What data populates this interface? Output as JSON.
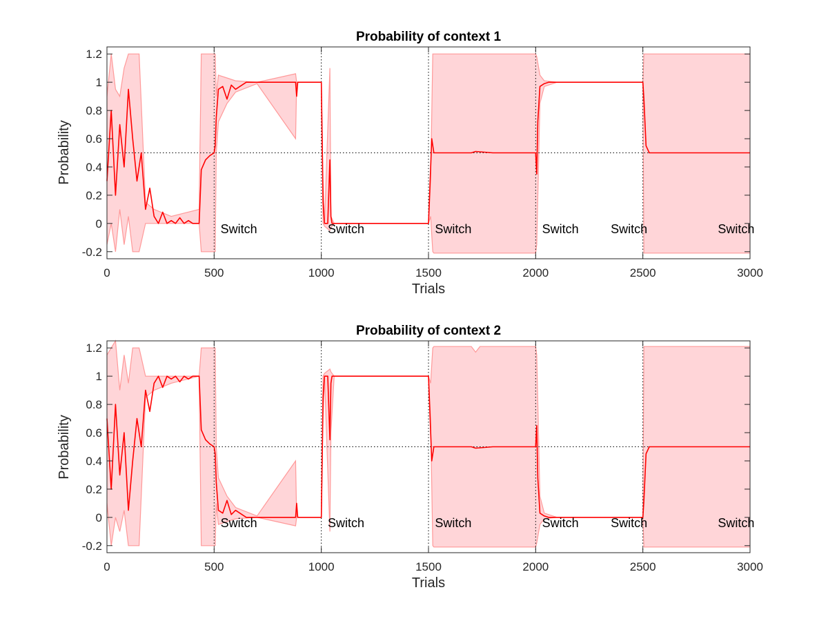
{
  "chart_data": [
    {
      "type": "line",
      "title": "Probability of context 1",
      "xlabel": "Trials",
      "ylabel": "Probability",
      "xlim": [
        0,
        3000
      ],
      "ylim": [
        -0.25,
        1.25
      ],
      "xticks": [
        0,
        500,
        1000,
        1500,
        2000,
        2500,
        3000
      ],
      "xtick_labels": [
        "0",
        "500",
        "1000",
        "1500",
        "2000",
        "2500",
        "3000"
      ],
      "yticks": [
        -0.2,
        0,
        0.2,
        0.4,
        0.6,
        0.8,
        1,
        1.2
      ],
      "ytick_labels": [
        "-0.2",
        "0",
        "0.2",
        "0.4",
        "0.6",
        "0.8",
        "1",
        "1.2"
      ],
      "grid": false,
      "colors": {
        "line": "#ff0000",
        "band_fill": "#ffd5d8",
        "band_edge": "#ff9999",
        "reference": "#000000"
      },
      "reference_line_y": 0.5,
      "switch_x": [
        500,
        1000,
        1500,
        2000,
        2500
      ],
      "annotations": [
        {
          "text": "Switch",
          "x": 530,
          "y": -0.07
        },
        {
          "text": "Switch",
          "x": 1030,
          "y": -0.07
        },
        {
          "text": "Switch",
          "x": 1530,
          "y": -0.07
        },
        {
          "text": "Switch",
          "x": 2030,
          "y": -0.07
        },
        {
          "text": "Switch",
          "x": 2350,
          "y": -0.07
        },
        {
          "text": "Switch",
          "x": 2850,
          "y": -0.07
        }
      ],
      "series": [
        {
          "role": "mean",
          "x": [
            0,
            20,
            40,
            60,
            80,
            100,
            120,
            140,
            160,
            180,
            200,
            220,
            240,
            260,
            280,
            300,
            320,
            340,
            360,
            380,
            400,
            430,
            440,
            460,
            480,
            500,
            505,
            510,
            520,
            540,
            560,
            580,
            600,
            650,
            700,
            800,
            880,
            885,
            890,
            900,
            1000,
            1008,
            1015,
            1030,
            1040,
            1045,
            1050,
            1060,
            1080,
            1200,
            1400,
            1500,
            1505,
            1515,
            1525,
            1550,
            1600,
            1700,
            1720,
            1800,
            2000,
            2005,
            2010,
            2020,
            2040,
            2060,
            2100,
            2300,
            2500,
            2505,
            2515,
            2530,
            2600,
            3000
          ],
          "y": [
            0.3,
            0.8,
            0.2,
            0.7,
            0.4,
            0.95,
            0.6,
            0.3,
            0.5,
            0.1,
            0.25,
            0.05,
            0.0,
            0.08,
            0.0,
            0.02,
            0.0,
            0.04,
            0.0,
            0.02,
            0.0,
            0.0,
            0.38,
            0.45,
            0.48,
            0.5,
            0.55,
            0.75,
            0.95,
            0.97,
            0.88,
            0.98,
            0.95,
            1.0,
            1.0,
            1.0,
            1.0,
            0.9,
            1.0,
            1.0,
            1.0,
            0.15,
            0.0,
            0.0,
            0.45,
            0.05,
            0.0,
            0.0,
            0.0,
            0.0,
            0.0,
            0.0,
            0.2,
            0.6,
            0.5,
            0.5,
            0.5,
            0.5,
            0.51,
            0.5,
            0.5,
            0.35,
            0.72,
            0.97,
            0.99,
            1.0,
            1.0,
            1.0,
            1.0,
            0.88,
            0.55,
            0.5,
            0.5,
            0.5
          ]
        },
        {
          "role": "upper-bound",
          "x": [
            0,
            20,
            40,
            60,
            80,
            100,
            120,
            150,
            180,
            220,
            300,
            430,
            440,
            500,
            505,
            510,
            520,
            560,
            600,
            700,
            880,
            885,
            890,
            1000,
            1008,
            1015,
            1040,
            1045,
            1060,
            1500,
            1510,
            1520,
            1525,
            2000,
            2005,
            2020,
            2040,
            2100,
            2500,
            2505,
            2510,
            2520,
            3000
          ],
          "y": [
            0.9,
            1.2,
            0.95,
            0.9,
            1.1,
            1.2,
            1.2,
            1.2,
            0.15,
            0.1,
            0.05,
            0.1,
            1.2,
            1.2,
            1.2,
            0.9,
            1.05,
            1.03,
            1.01,
            1.0,
            1.06,
            1.0,
            1.0,
            1.0,
            0.3,
            0.0,
            1.1,
            0.05,
            0.0,
            0.0,
            0.3,
            1.2,
            1.2,
            1.2,
            1.18,
            1.05,
            1.01,
            1.0,
            1.0,
            1.2,
            1.2,
            1.2,
            1.2
          ]
        },
        {
          "role": "lower-bound",
          "x": [
            0,
            20,
            40,
            60,
            80,
            100,
            120,
            150,
            180,
            220,
            300,
            430,
            440,
            500,
            505,
            510,
            520,
            560,
            600,
            700,
            880,
            885,
            890,
            1000,
            1008,
            1015,
            1040,
            1045,
            1060,
            1500,
            1510,
            1520,
            1525,
            2000,
            2005,
            2020,
            2040,
            2100,
            2500,
            2505,
            2510,
            2520,
            3000
          ],
          "y": [
            -0.15,
            0.0,
            -0.2,
            0.1,
            -0.15,
            0.05,
            -0.2,
            -0.2,
            0.0,
            0.0,
            0.0,
            0.0,
            -0.2,
            -0.2,
            -0.2,
            0.5,
            0.72,
            0.85,
            0.93,
            0.99,
            0.6,
            1.0,
            1.0,
            1.0,
            0.0,
            -0.02,
            -0.05,
            -0.03,
            0.0,
            0.0,
            0.05,
            -0.2,
            -0.21,
            -0.21,
            -0.15,
            0.85,
            0.97,
            1.0,
            1.0,
            -0.21,
            -0.21,
            -0.21,
            -0.21
          ]
        }
      ]
    },
    {
      "type": "line",
      "title": "Probability of context 2",
      "xlabel": "Trials",
      "ylabel": "Probability",
      "xlim": [
        0,
        3000
      ],
      "ylim": [
        -0.25,
        1.25
      ],
      "xticks": [
        0,
        500,
        1000,
        1500,
        2000,
        2500,
        3000
      ],
      "xtick_labels": [
        "0",
        "500",
        "1000",
        "1500",
        "2000",
        "2500",
        "3000"
      ],
      "yticks": [
        -0.2,
        0,
        0.2,
        0.4,
        0.6,
        0.8,
        1,
        1.2
      ],
      "ytick_labels": [
        "-0.2",
        "0",
        "0.2",
        "0.4",
        "0.6",
        "0.8",
        "1",
        "1.2"
      ],
      "grid": false,
      "colors": {
        "line": "#ff0000",
        "band_fill": "#ffd5d8",
        "band_edge": "#ff9999",
        "reference": "#000000"
      },
      "reference_line_y": 0.5,
      "switch_x": [
        500,
        1000,
        1500,
        2000,
        2500
      ],
      "annotations": [
        {
          "text": "Switch",
          "x": 530,
          "y": -0.07
        },
        {
          "text": "Switch",
          "x": 1030,
          "y": -0.07
        },
        {
          "text": "Switch",
          "x": 1530,
          "y": -0.07
        },
        {
          "text": "Switch",
          "x": 2030,
          "y": -0.07
        },
        {
          "text": "Switch",
          "x": 2350,
          "y": -0.07
        },
        {
          "text": "Switch",
          "x": 2850,
          "y": -0.07
        }
      ],
      "series": [
        {
          "role": "mean",
          "x": [
            0,
            20,
            40,
            60,
            80,
            100,
            120,
            140,
            160,
            180,
            200,
            220,
            240,
            260,
            280,
            300,
            320,
            340,
            360,
            380,
            400,
            430,
            440,
            460,
            480,
            500,
            505,
            510,
            520,
            540,
            560,
            580,
            600,
            650,
            700,
            800,
            880,
            885,
            890,
            900,
            1000,
            1008,
            1015,
            1030,
            1040,
            1045,
            1050,
            1060,
            1080,
            1200,
            1400,
            1500,
            1505,
            1515,
            1525,
            1550,
            1600,
            1700,
            1720,
            1800,
            2000,
            2005,
            2010,
            2020,
            2040,
            2060,
            2100,
            2300,
            2500,
            2505,
            2515,
            2530,
            2600,
            3000
          ],
          "y": [
            0.7,
            0.2,
            0.8,
            0.3,
            0.6,
            0.05,
            0.4,
            0.7,
            0.5,
            0.9,
            0.75,
            0.95,
            1.0,
            0.92,
            1.0,
            0.98,
            1.0,
            0.96,
            1.0,
            0.98,
            1.0,
            1.0,
            0.62,
            0.55,
            0.52,
            0.5,
            0.45,
            0.25,
            0.05,
            0.03,
            0.12,
            0.02,
            0.05,
            0.0,
            0.0,
            0.0,
            0.0,
            0.1,
            0.0,
            0.0,
            0.0,
            0.85,
            1.0,
            1.0,
            0.55,
            0.95,
            1.0,
            1.0,
            1.0,
            1.0,
            1.0,
            1.0,
            0.8,
            0.4,
            0.5,
            0.5,
            0.5,
            0.5,
            0.49,
            0.5,
            0.5,
            0.65,
            0.28,
            0.03,
            0.01,
            0.0,
            0.0,
            0.0,
            0.0,
            0.12,
            0.45,
            0.5,
            0.5,
            0.5
          ]
        },
        {
          "role": "upper-bound",
          "x": [
            0,
            20,
            40,
            60,
            80,
            100,
            120,
            150,
            180,
            220,
            300,
            430,
            440,
            500,
            505,
            510,
            520,
            560,
            600,
            700,
            880,
            885,
            890,
            1000,
            1008,
            1015,
            1040,
            1045,
            1060,
            1500,
            1510,
            1520,
            1525,
            1700,
            1720,
            1740,
            2000,
            2005,
            2020,
            2040,
            2100,
            2500,
            2505,
            2510,
            2520,
            3000
          ],
          "y": [
            1.15,
            1.2,
            1.25,
            0.9,
            1.15,
            0.95,
            1.2,
            1.2,
            1.0,
            1.0,
            1.0,
            1.0,
            1.2,
            1.2,
            1.2,
            0.5,
            0.28,
            0.15,
            0.07,
            0.01,
            0.4,
            0.0,
            0.0,
            0.0,
            1.0,
            1.02,
            1.05,
            1.03,
            1.0,
            1.0,
            0.95,
            1.2,
            1.21,
            1.21,
            1.17,
            1.21,
            1.21,
            1.15,
            0.15,
            0.03,
            0.0,
            0.0,
            1.21,
            1.21,
            1.21,
            1.21
          ]
        },
        {
          "role": "lower-bound",
          "x": [
            0,
            20,
            40,
            60,
            80,
            100,
            120,
            150,
            180,
            220,
            300,
            430,
            440,
            500,
            505,
            510,
            520,
            560,
            600,
            700,
            880,
            885,
            890,
            1000,
            1008,
            1015,
            1040,
            1045,
            1060,
            1500,
            1510,
            1520,
            1525,
            2000,
            2005,
            2020,
            2040,
            2100,
            2500,
            2505,
            2510,
            2520,
            3000
          ],
          "y": [
            0.1,
            -0.2,
            0.0,
            -0.1,
            0.05,
            -0.2,
            -0.2,
            -0.2,
            0.85,
            0.9,
            0.95,
            1.0,
            -0.2,
            -0.2,
            -0.2,
            0.1,
            -0.05,
            -0.03,
            -0.01,
            0.0,
            -0.06,
            0.0,
            0.0,
            0.0,
            0.7,
            1.0,
            -0.1,
            0.6,
            1.0,
            1.0,
            0.7,
            -0.2,
            -0.21,
            -0.21,
            -0.18,
            -0.05,
            -0.01,
            0.0,
            0.0,
            -0.21,
            -0.21,
            -0.21,
            -0.21
          ]
        }
      ]
    }
  ]
}
